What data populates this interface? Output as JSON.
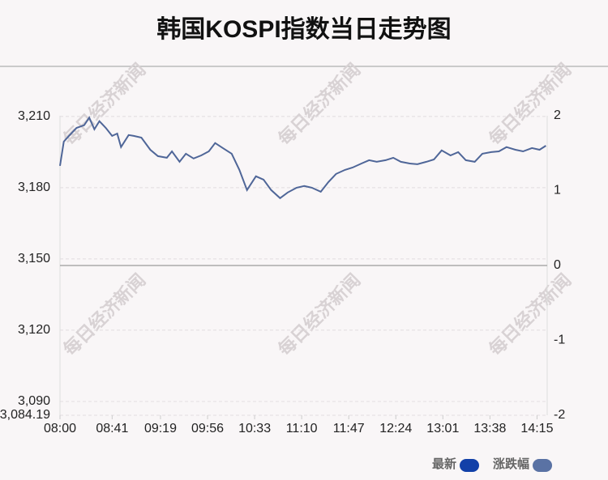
{
  "chart_data": {
    "type": "line",
    "title": "韩国KOSPI指数当日走势图",
    "watermark": "每日经济新闻",
    "x": [
      "08:00",
      "08:03",
      "08:07",
      "08:13",
      "08:19",
      "08:23",
      "08:27",
      "08:31",
      "08:36",
      "08:41",
      "08:45",
      "08:48",
      "08:54",
      "08:58",
      "09:04",
      "09:11",
      "09:17",
      "09:24",
      "09:28",
      "09:34",
      "09:39",
      "09:45",
      "09:51",
      "09:57",
      "10:02",
      "10:08",
      "10:15",
      "10:21",
      "10:27",
      "10:34",
      "10:40",
      "10:46",
      "10:53",
      "10:59",
      "11:06",
      "11:12",
      "11:18",
      "11:25",
      "11:31",
      "11:37",
      "11:44",
      "11:50",
      "11:57",
      "12:03",
      "12:09",
      "12:16",
      "12:22",
      "12:28",
      "12:35",
      "12:41",
      "12:48",
      "12:54",
      "13:00",
      "13:07",
      "13:13",
      "13:19",
      "13:26",
      "13:32",
      "13:39",
      "13:45",
      "13:51",
      "13:58",
      "14:04",
      "14:11",
      "14:17",
      "14:22"
    ],
    "series": [
      {
        "color": "#4f6698",
        "values": [
          3189.2,
          3199.4,
          3201.8,
          3205.2,
          3206.3,
          3209.5,
          3204.6,
          3208.0,
          3205.2,
          3201.8,
          3202.8,
          3197.1,
          3202.2,
          3201.8,
          3201.1,
          3196.0,
          3193.3,
          3192.6,
          3195.3,
          3190.9,
          3194.3,
          3192.3,
          3193.6,
          3195.3,
          3198.8,
          3196.7,
          3194.3,
          3187.5,
          3179.0,
          3184.8,
          3183.4,
          3179.0,
          3175.6,
          3178.0,
          3180.0,
          3180.7,
          3180.0,
          3178.3,
          3182.4,
          3185.8,
          3187.5,
          3188.5,
          3190.2,
          3191.6,
          3190.9,
          3191.6,
          3192.6,
          3190.9,
          3190.2,
          3189.9,
          3190.9,
          3191.9,
          3195.7,
          3193.6,
          3195.0,
          3191.6,
          3190.9,
          3194.3,
          3195.0,
          3195.3,
          3197.1,
          3196.0,
          3195.3,
          3196.7,
          3196.0,
          3197.7
        ]
      }
    ],
    "legend": [
      {
        "name": "最新",
        "color": "#1240a8"
      },
      {
        "name": "涨跌幅",
        "color": "#5a72a4"
      }
    ],
    "xlim": [
      "08:00",
      "14:23"
    ],
    "xticks": [
      "08:00",
      "08:41",
      "09:19",
      "09:56",
      "10:33",
      "11:10",
      "11:47",
      "12:24",
      "13:01",
      "13:38",
      "14:15"
    ],
    "ylim": [
      3084.19,
      3210.3
    ],
    "yticks": [
      {
        "value": 3084.19,
        "label": "3,084.19"
      },
      {
        "value": 3090,
        "label": "3,090"
      },
      {
        "value": 3120,
        "label": "3,120"
      },
      {
        "value": 3150,
        "label": "3,150"
      },
      {
        "value": 3180,
        "label": "3,180"
      },
      {
        "value": 3210,
        "label": "3,210"
      }
    ],
    "y2lim": [
      -2,
      2
    ],
    "y2ticks": [
      -2,
      -1,
      0,
      1,
      2
    ],
    "grid": true
  }
}
